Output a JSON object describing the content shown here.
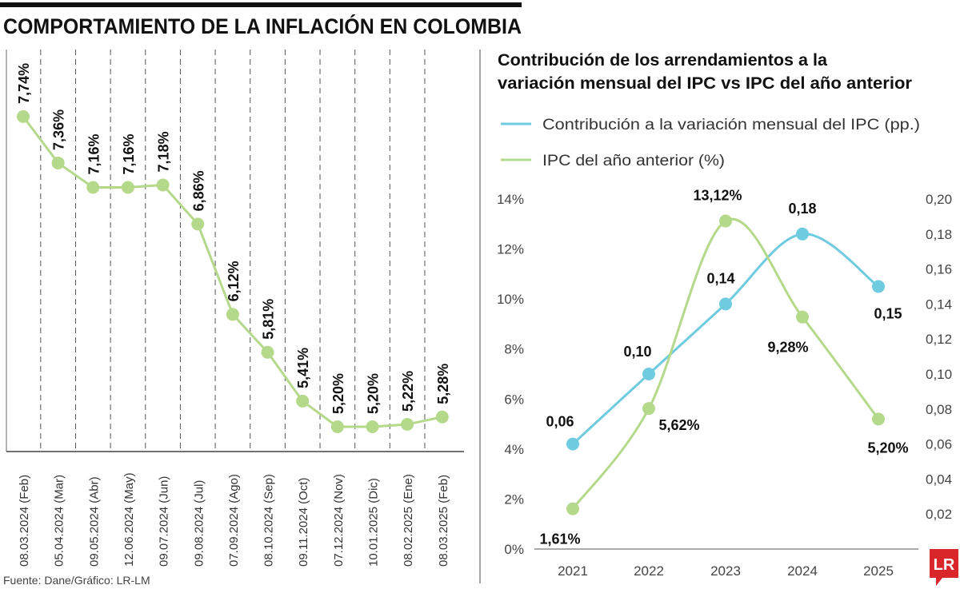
{
  "title": "COMPORTAMIENTO DE LA INFLACIÓN EN COLOMBIA",
  "source": "Fuente: Dane/Gráfico: LR-LM",
  "logo": "LR",
  "colors": {
    "green": "#b5d98a",
    "blue": "#6fcbe0",
    "logo_red": "#d9262b"
  },
  "chart_data": [
    {
      "type": "line",
      "title": "",
      "categories": [
        "08.03.2024 (Feb)",
        "05.04.2024 (Mar)",
        "09.05.2024 (Abr)",
        "12.06.2024 (May)",
        "09.07.2024 (Jun)",
        "09.08.2024 (Jul)",
        "07.09.2024 (Ago)",
        "08.10.2024 (Sep)",
        "09.11.2024 (Oct)",
        "07.12.2024 (Nov)",
        "10.01.2025 (Dic)",
        "08.02.2025 (Ene)",
        "08.03.2025 (Feb)"
      ],
      "values": [
        7.74,
        7.36,
        7.16,
        7.16,
        7.18,
        6.86,
        6.12,
        5.81,
        5.41,
        5.2,
        5.2,
        5.22,
        5.28
      ],
      "labels": [
        "7,74%",
        "7,36%",
        "7,16%",
        "7,16%",
        "7,18%",
        "6,86%",
        "6,12%",
        "5,81%",
        "5,41%",
        "5,20%",
        "5,20%",
        "5,22%",
        "5,28%"
      ],
      "color": "#b5d98a",
      "grid": "vertical dashed"
    },
    {
      "type": "line",
      "title": "Contribución de los arrendamientos a la variación mensual del IPC vs IPC del año anterior",
      "title_lines": [
        "Contribución de los arrendamientos a la",
        "variación mensual del IPC vs IPC del año anterior"
      ],
      "categories": [
        "2021",
        "2022",
        "2023",
        "2024",
        "2025"
      ],
      "legend_position": "top-left",
      "y_left": {
        "ticks": [
          "0%",
          "2%",
          "4%",
          "6%",
          "8%",
          "10%",
          "12%",
          "14%"
        ],
        "range": [
          0,
          14
        ]
      },
      "y_right": {
        "ticks": [
          "0,02",
          "0,04",
          "0,06",
          "0,08",
          "0,10",
          "0,12",
          "0,14",
          "0,16",
          "0,18",
          "0,20"
        ],
        "range": [
          0,
          0.2
        ]
      },
      "series": [
        {
          "name": "Contribución a la variación mensual del IPC (pp.)",
          "axis": "right",
          "color": "#6fcbe0",
          "values": [
            0.06,
            0.1,
            0.14,
            0.18,
            0.15
          ],
          "labels": [
            "0,06",
            "0,10",
            "0,14",
            "0,18",
            "0,15"
          ]
        },
        {
          "name": "IPC del año anterior (%)",
          "axis": "left",
          "color": "#b5d98a",
          "values": [
            1.61,
            5.62,
            13.12,
            9.28,
            5.2
          ],
          "labels": [
            "1,61%",
            "5,62%",
            "13,12%",
            "9,28%",
            "5,20%"
          ]
        }
      ]
    }
  ]
}
